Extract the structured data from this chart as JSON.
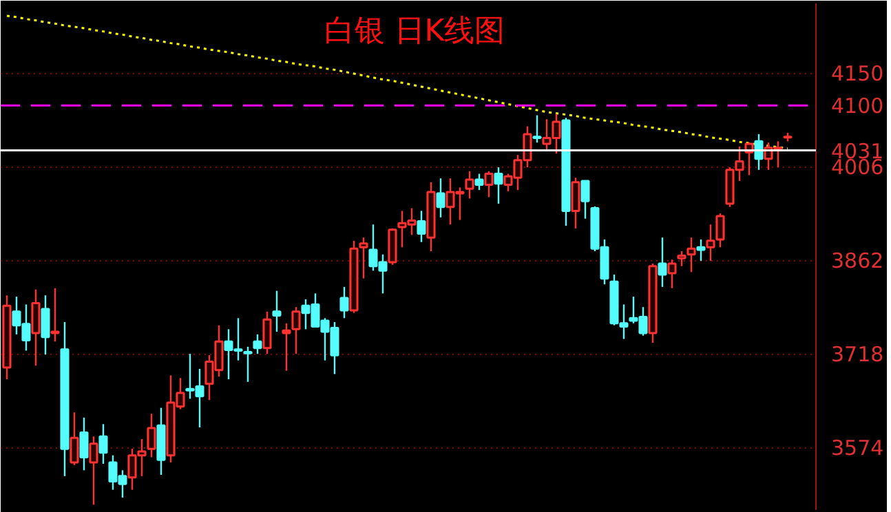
{
  "chart_data": {
    "type": "candlestick",
    "title": "白银    日K线图",
    "categories": [
      null,
      null,
      null,
      null,
      null,
      null,
      null,
      null,
      null,
      null,
      null,
      null,
      null,
      null,
      null,
      null,
      null,
      null,
      null,
      null,
      null,
      null,
      null,
      null,
      null,
      null,
      null,
      null,
      null,
      null,
      null,
      null,
      null,
      null,
      null,
      null,
      null,
      null,
      null,
      null,
      null,
      null,
      null,
      null,
      null,
      null,
      null,
      null,
      null,
      null,
      null,
      null,
      null,
      null,
      null,
      null,
      null,
      null,
      null,
      null,
      null,
      null,
      null,
      null,
      null,
      null,
      null,
      null,
      null,
      null,
      null,
      null,
      null,
      null,
      null,
      null,
      null,
      null,
      null,
      null,
      null,
      null
    ],
    "ohlc": [
      [
        3697,
        3808,
        3679,
        3792
      ],
      [
        3783,
        3806,
        3748,
        3762
      ],
      [
        3764,
        3794,
        3723,
        3739
      ],
      [
        3750,
        3817,
        3700,
        3796
      ],
      [
        3787,
        3808,
        3717,
        3744
      ],
      [
        3750,
        3819,
        3737,
        3752
      ],
      [
        3725,
        3767,
        3530,
        3572
      ],
      [
        3551,
        3628,
        3547,
        3589
      ],
      [
        3597,
        3620,
        3539,
        3559
      ],
      [
        3551,
        3591,
        3486,
        3580
      ],
      [
        3591,
        3610,
        3549,
        3566
      ],
      [
        3551,
        3562,
        3509,
        3522
      ],
      [
        3530,
        3539,
        3497,
        3518
      ],
      [
        3528,
        3572,
        3509,
        3562
      ],
      [
        3562,
        3587,
        3530,
        3568
      ],
      [
        3572,
        3626,
        3559,
        3604
      ],
      [
        3608,
        3635,
        3532,
        3555
      ],
      [
        3562,
        3685,
        3551,
        3643
      ],
      [
        3637,
        3681,
        3633,
        3658
      ],
      [
        3664,
        3718,
        3649,
        3662
      ],
      [
        3668,
        3695,
        3605,
        3653
      ],
      [
        3672,
        3716,
        3647,
        3706
      ],
      [
        3693,
        3762,
        3683,
        3737
      ],
      [
        3737,
        3756,
        3679,
        3724
      ],
      [
        3725,
        3773,
        3708,
        3723
      ],
      [
        3721,
        3729,
        3675,
        3719
      ],
      [
        3737,
        3748,
        3718,
        3727
      ],
      [
        3727,
        3783,
        3718,
        3771
      ],
      [
        3783,
        3815,
        3752,
        3777
      ],
      [
        3754,
        3765,
        3692,
        3750
      ],
      [
        3756,
        3790,
        3718,
        3783
      ],
      [
        3792,
        3802,
        3756,
        3781
      ],
      [
        3794,
        3811,
        3760,
        3760
      ],
      [
        3769,
        3773,
        3708,
        3752
      ],
      [
        3758,
        3767,
        3687,
        3716
      ],
      [
        3804,
        3821,
        3773,
        3785
      ],
      [
        3785,
        3892,
        3781,
        3880
      ],
      [
        3882,
        3897,
        3834,
        3888
      ],
      [
        3878,
        3917,
        3846,
        3853
      ],
      [
        3859,
        3871,
        3811,
        3846
      ],
      [
        3859,
        3911,
        3855,
        3909
      ],
      [
        3913,
        3938,
        3882,
        3919
      ],
      [
        3917,
        3942,
        3901,
        3923
      ],
      [
        3922,
        3938,
        3890,
        3903
      ],
      [
        3897,
        3982,
        3876,
        3967
      ],
      [
        3965,
        3988,
        3928,
        3944
      ],
      [
        3944,
        3988,
        3917,
        3967
      ],
      [
        3965,
        3974,
        3924,
        3967
      ],
      [
        3972,
        3999,
        3957,
        3986
      ],
      [
        3986,
        3995,
        3970,
        3978
      ],
      [
        3978,
        3999,
        3959,
        3995
      ],
      [
        3995,
        4005,
        3949,
        3980
      ],
      [
        3978,
        3995,
        3968,
        3991
      ],
      [
        3989,
        4024,
        3970,
        4016
      ],
      [
        4016,
        4068,
        4005,
        4056
      ],
      [
        4052,
        4085,
        4043,
        4050
      ],
      [
        4041,
        4079,
        4030,
        4050
      ],
      [
        4050,
        4087,
        4026,
        4075
      ],
      [
        4077,
        4081,
        3915,
        3938
      ],
      [
        3938,
        3989,
        3911,
        3982
      ],
      [
        3984,
        3984,
        3926,
        3953
      ],
      [
        3942,
        3945,
        3876,
        3880
      ],
      [
        3882,
        3894,
        3825,
        3834
      ],
      [
        3829,
        3840,
        3762,
        3765
      ],
      [
        3765,
        3794,
        3741,
        3760
      ],
      [
        3773,
        3806,
        3765,
        3769
      ],
      [
        3775,
        3790,
        3746,
        3750
      ],
      [
        3750,
        3857,
        3735,
        3853
      ],
      [
        3857,
        3897,
        3821,
        3840
      ],
      [
        3842,
        3863,
        3819,
        3857
      ],
      [
        3865,
        3876,
        3853,
        3869
      ],
      [
        3871,
        3897,
        3844,
        3880
      ],
      [
        3882,
        3894,
        3861,
        3878
      ],
      [
        3882,
        3917,
        3861,
        3892
      ],
      [
        3894,
        3934,
        3882,
        3930
      ],
      [
        3949,
        4005,
        3944,
        4001
      ],
      [
        4001,
        4037,
        3984,
        4014
      ],
      [
        4028,
        4043,
        3993,
        4041
      ],
      [
        4045,
        4056,
        4001,
        4018
      ],
      [
        4018,
        4043,
        4001,
        4035
      ],
      [
        4033,
        4045,
        4005,
        4035
      ],
      [
        4051,
        4058,
        4045,
        4052
      ]
    ],
    "colors": [
      "#ff3232",
      "#54fcfc",
      "#54fcfc",
      "#ff3232",
      "#54fcfc",
      "#ff3232",
      "#54fcfc",
      "#ff3232",
      "#54fcfc",
      "#ff3232",
      "#54fcfc",
      "#54fcfc",
      "#54fcfc",
      "#ff3232",
      "#ff3232",
      "#ff3232",
      "#54fcfc",
      "#ff3232",
      "#ff3232",
      "#54fcfc",
      "#54fcfc",
      "#ff3232",
      "#ff3232",
      "#54fcfc",
      "#54fcfc",
      "#54fcfc",
      "#54fcfc",
      "#ff3232",
      "#54fcfc",
      "#ff3232",
      "#ff3232",
      "#54fcfc",
      "#54fcfc",
      "#54fcfc",
      "#54fcfc",
      "#54fcfc",
      "#ff3232",
      "#ff3232",
      "#54fcfc",
      "#54fcfc",
      "#ff3232",
      "#ff3232",
      "#ff3232",
      "#54fcfc",
      "#ff3232",
      "#54fcfc",
      "#ff3232",
      "#ff3232",
      "#ff3232",
      "#54fcfc",
      "#ff3232",
      "#54fcfc",
      "#ff3232",
      "#ff3232",
      "#ff3232",
      "#54fcfc",
      "#ff3232",
      "#ff3232",
      "#54fcfc",
      "#ff3232",
      "#54fcfc",
      "#54fcfc",
      "#54fcfc",
      "#54fcfc",
      "#54fcfc",
      "#54fcfc",
      "#54fcfc",
      "#ff3232",
      "#54fcfc",
      "#ff3232",
      "#ff3232",
      "#ff3232",
      "#54fcfc",
      "#ff3232",
      "#ff3232",
      "#ff3232",
      "#ff3232",
      "#ff3232",
      "#54fcfc",
      "#ff3232",
      "#ff3232",
      "#ff3232"
    ],
    "series": [
      {
        "type": "line",
        "values": [
          4238,
          4236,
          4233,
          4231,
          4228,
          4226,
          4223,
          4221,
          4219,
          4216,
          4214,
          4211,
          4209,
          4206,
          4204,
          4201,
          4199,
          4196,
          4194,
          4191,
          4189,
          4186,
          4184,
          4182,
          4179,
          4177,
          4174,
          4172,
          4169,
          4167,
          4164,
          4162,
          4160,
          4157,
          4155,
          4152,
          4149,
          4146,
          4143,
          4140,
          4138,
          4135,
          4132,
          4129,
          4126,
          4123,
          4120,
          4117,
          4114,
          4111,
          4108,
          4105,
          4102,
          4099,
          4096,
          4093,
          4090,
          4088,
          4086,
          4084,
          4081,
          4079,
          4077,
          4075,
          4073,
          4070,
          4068,
          4066,
          4063,
          4061,
          4059,
          4056,
          4054,
          4051,
          4049,
          4047,
          4044,
          4042,
          4040,
          4038,
          4036,
          4034
        ],
        "color": "#ffff00",
        "line_style": "dotted"
      }
    ],
    "ylim": [
      3478,
      4257
    ],
    "yticks": [
      3574,
      3718,
      3862,
      4006,
      4150
    ],
    "tick_labels": "y",
    "grid": "y",
    "ref_lines": [
      {
        "axis": "y",
        "value": 4100,
        "label": "4100",
        "color": "#ff00ff",
        "line_style": "dashed"
      },
      {
        "axis": "y",
        "value": 4031,
        "label": "4031",
        "color": "#ffffff",
        "line_style": "solid"
      }
    ]
  }
}
